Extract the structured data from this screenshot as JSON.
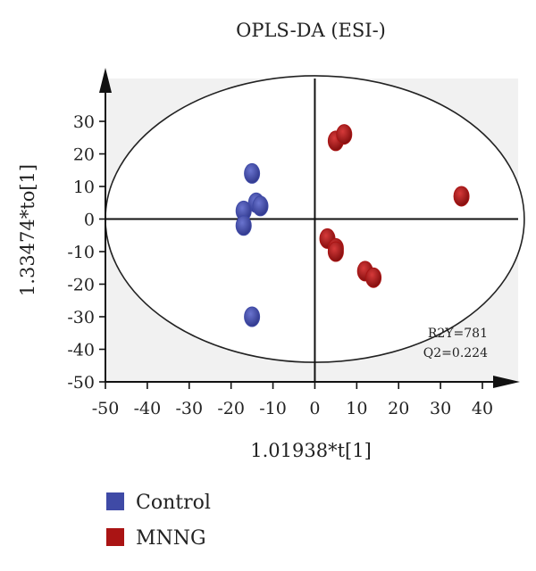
{
  "chart_data": {
    "type": "scatter",
    "title": "OPLS-DA (ESI-)",
    "xlabel": "1.01938*t[1]",
    "ylabel": "1.33474*to[1]",
    "xlim": [
      -50,
      40
    ],
    "ylim": [
      -50,
      30
    ],
    "xticks": [
      "-50",
      "-40",
      "-30",
      "-20",
      "-10",
      "0",
      "10",
      "20",
      "30",
      "40"
    ],
    "yticks": [
      "30",
      "20",
      "10",
      "0",
      "-10",
      "-20",
      "-30",
      "-40",
      "-50"
    ],
    "grid": false,
    "legend_position": "bottom-left",
    "confidence_ellipse": {
      "center": [
        0,
        0
      ],
      "radius_x": 50,
      "radius_y": 44
    },
    "annotations": [
      "R2Y=781",
      "Q2=0.224"
    ],
    "series": [
      {
        "name": "Control",
        "color": "#3f4aa6",
        "points": [
          [
            -15,
            14
          ],
          [
            -14,
            5
          ],
          [
            -13,
            4
          ],
          [
            -17,
            2.5
          ],
          [
            -17,
            -2
          ],
          [
            -15,
            -30
          ]
        ]
      },
      {
        "name": "MNNG",
        "color": "#aa1414",
        "points": [
          [
            5,
            24
          ],
          [
            7,
            26
          ],
          [
            35,
            7
          ],
          [
            3,
            -6
          ],
          [
            5,
            -9
          ],
          [
            5,
            -10
          ],
          [
            12,
            -16
          ],
          [
            14,
            -18
          ]
        ]
      }
    ]
  }
}
